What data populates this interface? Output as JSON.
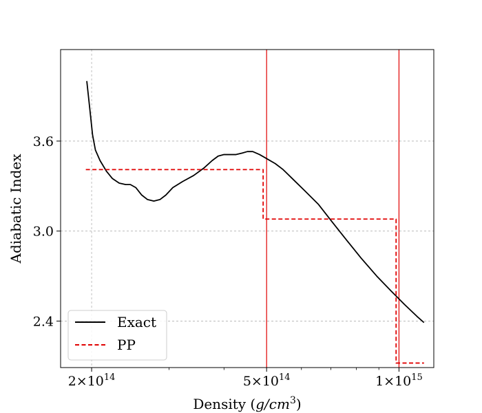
{
  "chart_data": {
    "type": "line",
    "xlabel": "Density (g/cm^3)",
    "ylabel": "Adiabatic Index",
    "xscale": "log",
    "xlim": [
      170000000000000.0,
      1200000000000000.0
    ],
    "ylim": [
      2.09,
      4.21
    ],
    "xticks": [
      {
        "value": 200000000000000.0,
        "mant": "2",
        "exp": "14"
      },
      {
        "value": 500000000000000.0,
        "mant": "5",
        "exp": "14"
      },
      {
        "value": 1000000000000000.0,
        "mant": "1",
        "exp": "15"
      }
    ],
    "yticks": [
      {
        "value": 2.4,
        "label": "2.4"
      },
      {
        "value": 3.0,
        "label": "3.0"
      },
      {
        "value": 3.6,
        "label": "3.6"
      }
    ],
    "grid": true,
    "legend_position": "lower-left",
    "vlines": [
      {
        "x": 500000000000000.0,
        "color": "#e00000"
      },
      {
        "x": 1000000000000000.0,
        "color": "#e00000"
      }
    ],
    "series": [
      {
        "name": "Exact",
        "style": "solid",
        "color": "#000000",
        "points": [
          [
            195000000000000.0,
            4.0
          ],
          [
            198000000000000.0,
            3.82
          ],
          [
            201000000000000.0,
            3.64
          ],
          [
            204000000000000.0,
            3.54
          ],
          [
            209000000000000.0,
            3.47
          ],
          [
            216000000000000.0,
            3.4
          ],
          [
            223000000000000.0,
            3.35
          ],
          [
            231000000000000.0,
            3.32
          ],
          [
            239000000000000.0,
            3.31
          ],
          [
            245000000000000.0,
            3.31
          ],
          [
            252000000000000.0,
            3.29
          ],
          [
            260000000000000.0,
            3.24
          ],
          [
            268000000000000.0,
            3.21
          ],
          [
            277000000000000.0,
            3.2
          ],
          [
            286000000000000.0,
            3.21
          ],
          [
            295000000000000.0,
            3.24
          ],
          [
            306000000000000.0,
            3.29
          ],
          [
            322000000000000.0,
            3.33
          ],
          [
            341000000000000.0,
            3.37
          ],
          [
            360000000000000.0,
            3.42
          ],
          [
            376000000000000.0,
            3.47
          ],
          [
            388000000000000.0,
            3.5
          ],
          [
            400000000000000.0,
            3.51
          ],
          [
            412000000000000.0,
            3.51
          ],
          [
            426000000000000.0,
            3.51
          ],
          [
            440000000000000.0,
            3.52
          ],
          [
            452000000000000.0,
            3.53
          ],
          [
            465000000000000.0,
            3.53
          ],
          [
            482000000000000.0,
            3.51
          ],
          [
            502000000000000.0,
            3.48
          ],
          [
            523000000000000.0,
            3.45
          ],
          [
            545000000000000.0,
            3.41
          ],
          [
            572000000000000.0,
            3.35
          ],
          [
            610000000000000.0,
            3.27
          ],
          [
            655000000000000.0,
            3.18
          ],
          [
            705000000000000.0,
            3.06
          ],
          [
            760000000000000.0,
            2.94
          ],
          [
            820000000000000.0,
            2.82
          ],
          [
            890000000000000.0,
            2.7
          ],
          [
            960000000000000.0,
            2.6
          ],
          [
            1030000000000000.0,
            2.51
          ],
          [
            1100000000000000.0,
            2.43
          ],
          [
            1140000000000000.0,
            2.39
          ]
        ]
      },
      {
        "name": "PP",
        "style": "dashed",
        "color": "#e00000",
        "points": [
          [
            194000000000000.0,
            3.41
          ],
          [
            491000000000000.0,
            3.41
          ],
          [
            491000000000000.0,
            3.08
          ],
          [
            985000000000000.0,
            3.08
          ],
          [
            985000000000000.0,
            2.12
          ],
          [
            1140000000000000.0,
            2.12
          ]
        ]
      }
    ]
  }
}
